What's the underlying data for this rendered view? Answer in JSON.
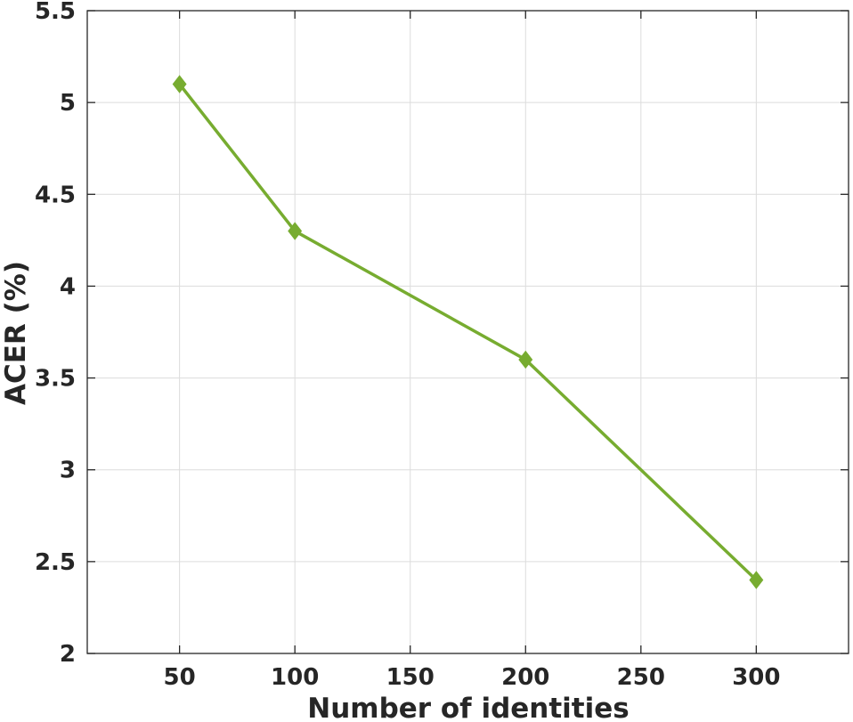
{
  "chart_data": {
    "type": "line",
    "xlabel": "Number of identities",
    "ylabel": "ACER (%)",
    "xlim": [
      10,
      340
    ],
    "ylim": [
      2,
      5.5
    ],
    "xticks": [
      50,
      100,
      150,
      200,
      250,
      300
    ],
    "xtick_labels": [
      "50",
      "100",
      "150",
      "200",
      "250",
      "300"
    ],
    "yticks": [
      2,
      2.5,
      3,
      3.5,
      4,
      4.5,
      5,
      5.5
    ],
    "ytick_labels": [
      "2",
      "2.5",
      "3",
      "3.5",
      "4",
      "4.5",
      "5",
      "5.5"
    ],
    "grid": true,
    "series": [
      {
        "x": [
          50,
          100,
          200,
          300
        ],
        "y": [
          5.1,
          4.3,
          3.6,
          2.4
        ],
        "color": "#77ac30",
        "marker": "diamond"
      }
    ]
  }
}
